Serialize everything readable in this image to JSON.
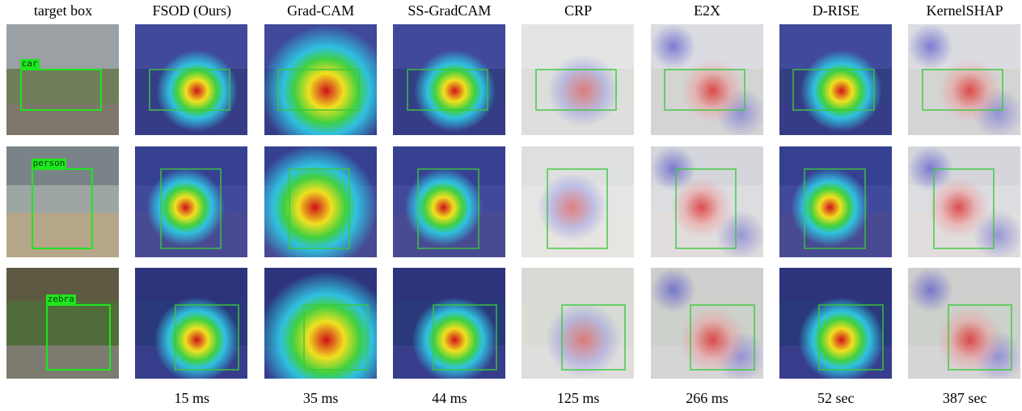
{
  "columns": [
    {
      "title": "target box"
    },
    {
      "title": "FSOD (Ours)",
      "time": "15 ms"
    },
    {
      "title": "Grad-CAM",
      "time": "35 ms"
    },
    {
      "title": "SS-GradCAM",
      "time": "44 ms"
    },
    {
      "title": "CRP",
      "time": "125 ms"
    },
    {
      "title": "E2X",
      "time": "266 ms"
    },
    {
      "title": "D-RISE",
      "time": "52 sec"
    },
    {
      "title": "KernelSHAP",
      "time": "387 sec"
    }
  ],
  "rows": [
    {
      "label": "car"
    },
    {
      "label": "person"
    },
    {
      "label": "zebra"
    }
  ]
}
